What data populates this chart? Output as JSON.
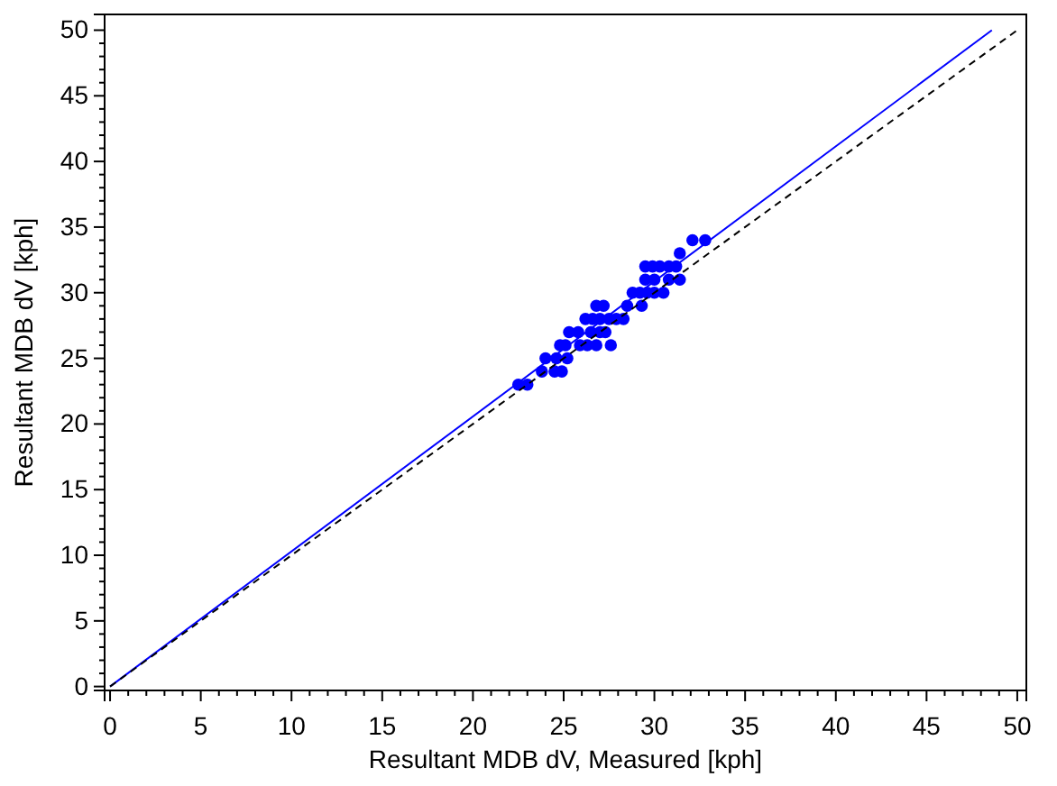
{
  "chart_data": {
    "type": "scatter",
    "xlabel": "Resultant MDB dV, Measured [kph]",
    "ylabel": "Resultant MDB dV [kph]",
    "xlim": [
      -0.3,
      50.5
    ],
    "ylim": [
      -0.3,
      51.2
    ],
    "xticks": [
      0,
      {
        "value": 1,
        "label": null
      },
      {
        "value": 2,
        "label": null
      },
      {
        "value": 3,
        "label": null
      },
      {
        "value": 4,
        "label": null
      },
      5,
      {
        "value": 6,
        "label": null
      },
      {
        "value": 7,
        "label": null
      },
      {
        "value": 8,
        "label": null
      },
      {
        "value": 9,
        "label": null
      },
      10,
      {
        "value": 11,
        "label": null
      },
      {
        "value": 12,
        "label": null
      },
      {
        "value": 13,
        "label": null
      },
      {
        "value": 14,
        "label": null
      },
      15,
      {
        "value": 16,
        "label": null
      },
      {
        "value": 17,
        "label": null
      },
      {
        "value": 18,
        "label": null
      },
      {
        "value": 19,
        "label": null
      },
      20,
      {
        "value": 21,
        "label": null
      },
      {
        "value": 22,
        "label": null
      },
      {
        "value": 23,
        "label": null
      },
      {
        "value": 24,
        "label": null
      },
      25,
      {
        "value": 26,
        "label": null
      },
      {
        "value": 27,
        "label": null
      },
      {
        "value": 28,
        "label": null
      },
      {
        "value": 29,
        "label": null
      },
      30,
      {
        "value": 31,
        "label": null
      },
      {
        "value": 32,
        "label": null
      },
      {
        "value": 33,
        "label": null
      },
      {
        "value": 34,
        "label": null
      },
      35,
      {
        "value": 36,
        "label": null
      },
      {
        "value": 37,
        "label": null
      },
      {
        "value": 38,
        "label": null
      },
      {
        "value": 39,
        "label": null
      },
      40,
      {
        "value": 41,
        "label": null
      },
      {
        "value": 42,
        "label": null
      },
      {
        "value": 43,
        "label": null
      },
      {
        "value": 44,
        "label": null
      },
      45,
      {
        "value": 46,
        "label": null
      },
      {
        "value": 47,
        "label": null
      },
      {
        "value": 48,
        "label": null
      },
      {
        "value": 49,
        "label": null
      },
      50
    ],
    "yticks": [
      0,
      {
        "value": 1,
        "label": null
      },
      {
        "value": 2,
        "label": null
      },
      {
        "value": 3,
        "label": null
      },
      {
        "value": 4,
        "label": null
      },
      5,
      {
        "value": 6,
        "label": null
      },
      {
        "value": 7,
        "label": null
      },
      {
        "value": 8,
        "label": null
      },
      {
        "value": 9,
        "label": null
      },
      10,
      {
        "value": 11,
        "label": null
      },
      {
        "value": 12,
        "label": null
      },
      {
        "value": 13,
        "label": null
      },
      {
        "value": 14,
        "label": null
      },
      15,
      {
        "value": 16,
        "label": null
      },
      {
        "value": 17,
        "label": null
      },
      {
        "value": 18,
        "label": null
      },
      {
        "value": 19,
        "label": null
      },
      20,
      {
        "value": 21,
        "label": null
      },
      {
        "value": 22,
        "label": null
      },
      {
        "value": 23,
        "label": null
      },
      {
        "value": 24,
        "label": null
      },
      25,
      {
        "value": 26,
        "label": null
      },
      {
        "value": 27,
        "label": null
      },
      {
        "value": 28,
        "label": null
      },
      {
        "value": 29,
        "label": null
      },
      30,
      {
        "value": 31,
        "label": null
      },
      {
        "value": 32,
        "label": null
      },
      {
        "value": 33,
        "label": null
      },
      {
        "value": 34,
        "label": null
      },
      35,
      {
        "value": 36,
        "label": null
      },
      {
        "value": 37,
        "label": null
      },
      {
        "value": 38,
        "label": null
      },
      {
        "value": 39,
        "label": null
      },
      40,
      {
        "value": 41,
        "label": null
      },
      {
        "value": 42,
        "label": null
      },
      {
        "value": 43,
        "label": null
      },
      {
        "value": 44,
        "label": null
      },
      45,
      {
        "value": 46,
        "label": null
      },
      {
        "value": 47,
        "label": null
      },
      {
        "value": 48,
        "label": null
      },
      {
        "value": 49,
        "label": null
      },
      50
    ],
    "grid": false,
    "series": [
      {
        "color": "#0000ff",
        "marker": "circle",
        "x": [
          22.5,
          23.0,
          23.8,
          24.5,
          24.9,
          24.0,
          24.6,
          25.2,
          24.8,
          25.1,
          25.9,
          26.3,
          26.8,
          27.6,
          25.3,
          25.8,
          26.5,
          27.0,
          27.3,
          26.2,
          26.6,
          27.0,
          27.5,
          27.9,
          28.3,
          26.8,
          27.2,
          28.5,
          29.3,
          28.8,
          29.2,
          29.6,
          30.0,
          30.5,
          29.5,
          30.0,
          30.8,
          31.4,
          29.5,
          29.9,
          30.3,
          30.8,
          31.2,
          31.4,
          32.1,
          32.8
        ],
        "values": [
          23,
          23,
          24,
          24,
          24,
          25,
          25,
          25,
          26,
          26,
          26,
          26,
          26,
          26,
          27,
          27,
          27,
          27,
          27,
          28,
          28,
          28,
          28,
          28,
          28,
          29,
          29,
          29,
          29,
          30,
          30,
          30,
          30,
          30,
          31,
          31,
          31,
          31,
          32,
          32,
          32,
          32,
          32,
          33,
          34,
          34
        ]
      },
      {
        "type": "line",
        "color": "#0000ff",
        "marker": "none",
        "line_style": "solid",
        "x": [
          0,
          48.6
        ],
        "values": [
          0,
          50
        ]
      },
      {
        "type": "line",
        "color": "#000000",
        "marker": "none",
        "line_style": "dashed",
        "x": [
          0,
          50
        ],
        "values": [
          0,
          50
        ]
      }
    ]
  }
}
